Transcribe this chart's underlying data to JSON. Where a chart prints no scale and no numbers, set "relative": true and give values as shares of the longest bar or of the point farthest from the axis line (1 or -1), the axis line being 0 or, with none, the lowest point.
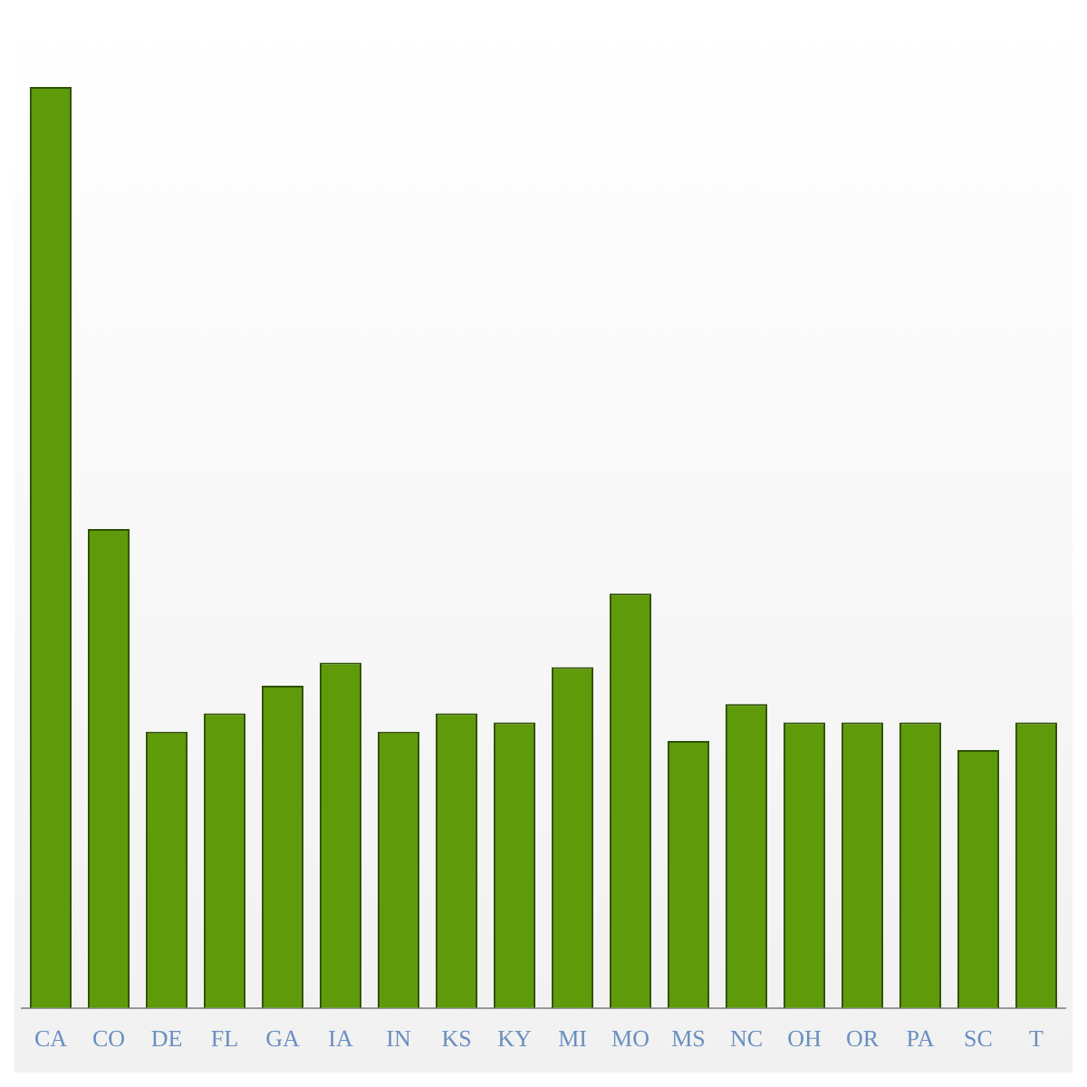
{
  "chart_data": {
    "type": "bar",
    "relative": true,
    "categories": [
      "CA",
      "CO",
      "DE",
      "FL",
      "GA",
      "IA",
      "IN",
      "KS",
      "KY",
      "MI",
      "MO",
      "MS",
      "NC",
      "OH",
      "OR",
      "PA",
      "SC",
      "T"
    ],
    "values": [
      1,
      0.52,
      0.3,
      0.32,
      0.35,
      0.375,
      0.3,
      0.32,
      0.31,
      0.37,
      0.45,
      0.29,
      0.33,
      0.31,
      0.31,
      0.31,
      0.28,
      0.31
    ],
    "color": "#5e9a0a",
    "grid": false,
    "legend": false
  }
}
